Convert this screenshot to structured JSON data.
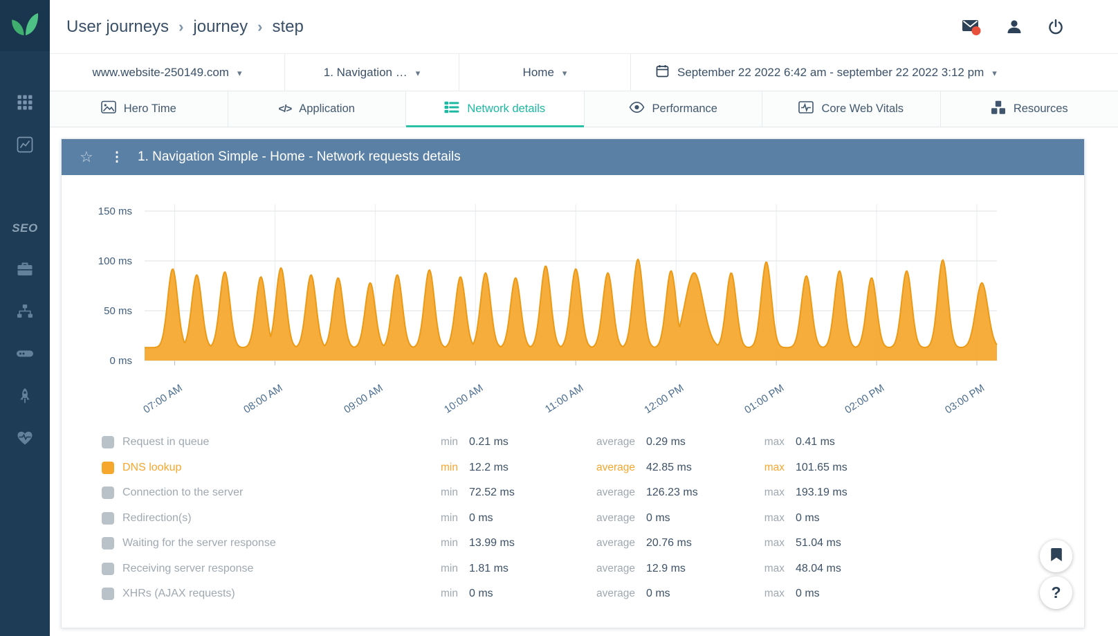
{
  "breadcrumb": {
    "items": [
      "User journeys",
      "journey",
      "step"
    ],
    "separator": "›"
  },
  "filters": {
    "website": "www.website-250149.com",
    "journey": "1. Navigation …",
    "step": "Home",
    "date_range": "September 22 2022 6:42 am - september 22 2022 3:12 pm"
  },
  "tabs": [
    {
      "label": "Hero Time",
      "active": false
    },
    {
      "label": "Application",
      "active": false
    },
    {
      "label": "Network details",
      "active": true
    },
    {
      "label": "Performance",
      "active": false
    },
    {
      "label": "Core Web Vitals",
      "active": false
    },
    {
      "label": "Resources",
      "active": false
    }
  ],
  "sidebar": {
    "seo_label": "SEO"
  },
  "panel": {
    "title": "1. Navigation Simple - Home - Network requests details"
  },
  "chart_data": {
    "type": "area",
    "title": "1. Navigation Simple - Home - Network requests details",
    "series_name": "DNS lookup",
    "unit": "ms",
    "x_range_hours": [
      6.7,
      15.2
    ],
    "ylim": [
      0,
      150
    ],
    "grid": true,
    "baseline_ms": 13,
    "default_peak_sigma_hours": 0.05,
    "peaks": [
      [
        6.98,
        92
      ],
      [
        7.22,
        86
      ],
      [
        7.5,
        89
      ],
      [
        7.86,
        84
      ],
      [
        8.06,
        93
      ],
      [
        8.36,
        86
      ],
      [
        8.63,
        83
      ],
      [
        8.95,
        78
      ],
      [
        9.22,
        86
      ],
      [
        9.54,
        91
      ],
      [
        9.85,
        84
      ],
      [
        10.1,
        88
      ],
      [
        10.4,
        83
      ],
      [
        10.7,
        95
      ],
      [
        11.0,
        92
      ],
      [
        11.32,
        88
      ],
      [
        11.62,
        101.65
      ],
      [
        11.95,
        90
      ],
      [
        12.18,
        88,
        0.09
      ],
      [
        12.55,
        88
      ],
      [
        12.9,
        99
      ],
      [
        13.3,
        85
      ],
      [
        13.63,
        90
      ],
      [
        13.95,
        83
      ],
      [
        14.3,
        90
      ],
      [
        14.66,
        101
      ],
      [
        15.05,
        78,
        0.06
      ]
    ],
    "yticks": [
      {
        "value": 150,
        "label": "150 ms"
      },
      {
        "value": 100,
        "label": "100 ms"
      },
      {
        "value": 50,
        "label": "50 ms"
      },
      {
        "value": 0,
        "label": "0 ms"
      }
    ],
    "xticks": [
      {
        "hour": 7,
        "label": "07:00 AM"
      },
      {
        "hour": 8,
        "label": "08:00 AM"
      },
      {
        "hour": 9,
        "label": "09:00 AM"
      },
      {
        "hour": 10,
        "label": "10:00 AM"
      },
      {
        "hour": 11,
        "label": "11:00 AM"
      },
      {
        "hour": 12,
        "label": "12:00 PM"
      },
      {
        "hour": 13,
        "label": "01:00 PM"
      },
      {
        "hour": 14,
        "label": "02:00 PM"
      },
      {
        "hour": 15,
        "label": "03:00 PM"
      }
    ],
    "fill_color": "#F6A72C",
    "line_color": "#EA9A16",
    "stats": {
      "min_ms": 12.2,
      "average_ms": 42.85,
      "max_ms": 101.65
    }
  },
  "legend": {
    "min_label": "min",
    "average_label": "average",
    "max_label": "max",
    "rows": [
      {
        "label": "Request in queue",
        "min": "0.21 ms",
        "average": "0.29 ms",
        "max": "0.41 ms",
        "swatch": "#B9C1C9",
        "highlight": false
      },
      {
        "label": "DNS lookup",
        "min": "12.2 ms",
        "average": "42.85 ms",
        "max": "101.65 ms",
        "swatch": "#F5A72E",
        "highlight": true
      },
      {
        "label": "Connection to the server",
        "min": "72.52 ms",
        "average": "126.23 ms",
        "max": "193.19 ms",
        "swatch": "#B9C1C9",
        "highlight": false
      },
      {
        "label": "Redirection(s)",
        "min": "0 ms",
        "average": "0 ms",
        "max": "0 ms",
        "swatch": "#B9C1C9",
        "highlight": false
      },
      {
        "label": "Waiting for the server response",
        "min": "13.99 ms",
        "average": "20.76 ms",
        "max": "51.04 ms",
        "swatch": "#B9C1C9",
        "highlight": false
      },
      {
        "label": "Receiving server response",
        "min": "1.81 ms",
        "average": "12.9 ms",
        "max": "48.04 ms",
        "swatch": "#B9C1C9",
        "highlight": false
      },
      {
        "label": "XHRs (AJAX requests)",
        "min": "0 ms",
        "average": "0 ms",
        "max": "0 ms",
        "swatch": "#B9C1C9",
        "highlight": false
      }
    ]
  },
  "icons": {
    "chevron_down": "▾",
    "star": "☆",
    "kebab": "⋮",
    "code": "</>",
    "help": "?"
  },
  "floating": {
    "help_label": "?"
  },
  "colors": {
    "sidebar_bg": "#1E3C55",
    "accent_teal": "#1DB8A2",
    "accent_orange": "#F5A72E",
    "panel_header_bg": "#5B80A6",
    "alert_red": "#E8503C"
  }
}
